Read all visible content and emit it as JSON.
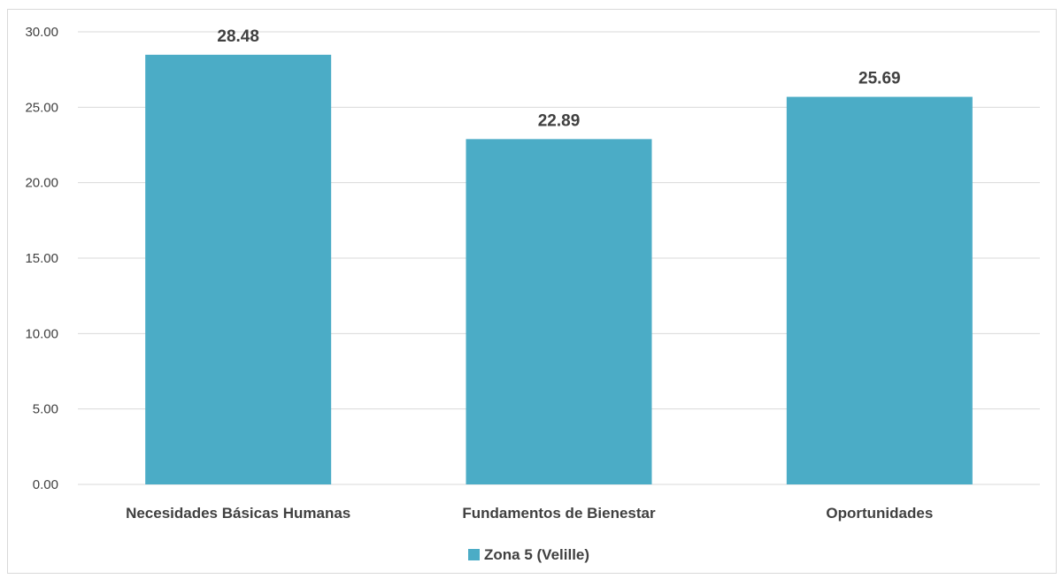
{
  "chart_data": {
    "type": "bar",
    "categories": [
      "Necesidades Básicas Humanas",
      "Fundamentos de Bienestar",
      "Oportunidades"
    ],
    "series": [
      {
        "name": "Zona 5 (Velille)",
        "values": [
          28.48,
          22.89,
          25.69
        ],
        "data_labels": [
          "28.48",
          "22.89",
          "25.69"
        ],
        "color": "#4BACC6"
      }
    ],
    "ylim": [
      0,
      30
    ],
    "yticks": [
      "0.00",
      "5.00",
      "10.00",
      "15.00",
      "20.00",
      "25.00",
      "30.00"
    ],
    "ytick_values": [
      0,
      5,
      10,
      15,
      20,
      25,
      30
    ],
    "grid": true,
    "legend_position": "bottom",
    "gridline_color": "#d9d9d9",
    "text_color": "#404040"
  }
}
